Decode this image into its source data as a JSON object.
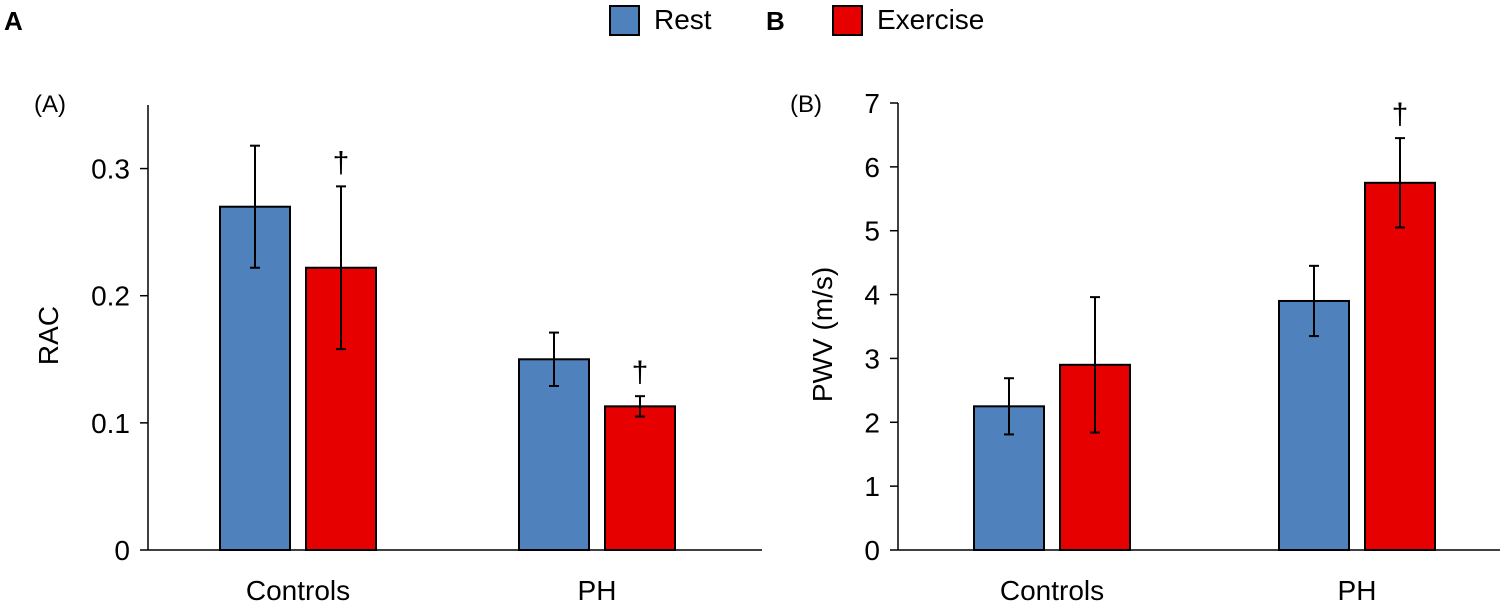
{
  "figure": {
    "panel_letters": [
      "A",
      "B"
    ],
    "legend": [
      {
        "name": "Rest",
        "color": "#4f81bd"
      },
      {
        "name": "Exercise",
        "color": "#e60000"
      }
    ]
  },
  "chart_data": [
    {
      "type": "bar",
      "panel_tag": "(A)",
      "title": "",
      "xlabel": "",
      "ylabel": "RAC",
      "categories": [
        "Controls",
        "PH"
      ],
      "series": [
        {
          "name": "Rest",
          "values": [
            0.27,
            0.15
          ],
          "errors": [
            0.048,
            0.021
          ],
          "color": "#4f81bd"
        },
        {
          "name": "Exercise",
          "values": [
            0.222,
            0.113
          ],
          "errors": [
            0.064,
            0.008
          ],
          "color": "#e60000"
        }
      ],
      "significance": [
        {
          "category": "Controls",
          "series": "Exercise",
          "label": "†"
        },
        {
          "category": "PH",
          "series": "Exercise",
          "label": "†"
        }
      ],
      "ylim": [
        0,
        0.35
      ],
      "yticks": [
        0,
        0.1,
        0.2,
        0.3
      ],
      "ytick_labels": [
        "0",
        "0.1",
        "0.2",
        "0.3"
      ]
    },
    {
      "type": "bar",
      "panel_tag": "(B)",
      "title": "",
      "xlabel": "",
      "ylabel": "PWV (m/s)",
      "categories": [
        "Controls",
        "PH"
      ],
      "series": [
        {
          "name": "Rest",
          "values": [
            2.25,
            3.9
          ],
          "errors": [
            0.44,
            0.55
          ],
          "color": "#4f81bd"
        },
        {
          "name": "Exercise",
          "values": [
            2.9,
            5.75
          ],
          "errors": [
            1.06,
            0.7
          ],
          "color": "#e60000"
        }
      ],
      "significance": [
        {
          "category": "PH",
          "series": "Exercise",
          "label": "†"
        }
      ],
      "ylim": [
        0,
        7
      ],
      "yticks": [
        0,
        1,
        2,
        3,
        4,
        5,
        6,
        7
      ],
      "ytick_labels": [
        "0",
        "1",
        "2",
        "3",
        "4",
        "5",
        "6",
        "7"
      ]
    }
  ]
}
